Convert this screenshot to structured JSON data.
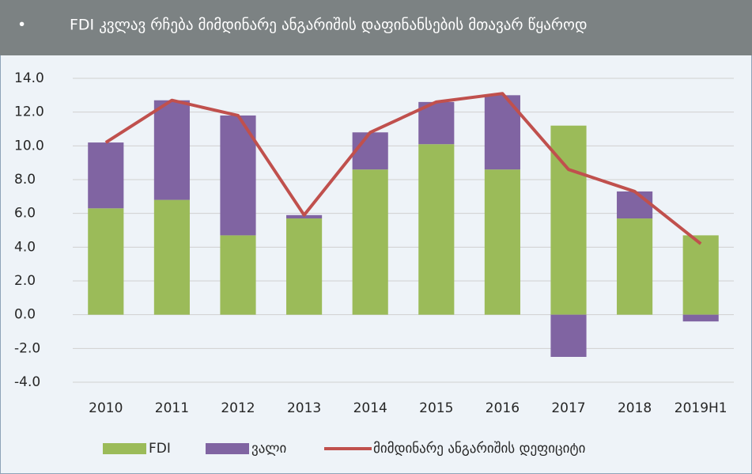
{
  "chart_data": {
    "type": "bar",
    "title": "FDI  კვლავ რჩება მიმდინარე ანგარიშის დაფინანსების მთავარ წყაროდ",
    "categories": [
      "2010",
      "2011",
      "2012",
      "2013",
      "2014",
      "2015",
      "2016",
      "2017",
      "2018",
      "2019H1"
    ],
    "stacked": true,
    "series": [
      {
        "name": "FDI",
        "type": "bar",
        "color": "#9bbb59",
        "values": [
          6.3,
          6.8,
          4.7,
          5.7,
          8.6,
          10.1,
          8.6,
          11.2,
          5.7,
          4.7
        ]
      },
      {
        "name": "ვალი",
        "type": "bar",
        "color": "#8064a2",
        "values": [
          3.9,
          5.9,
          7.1,
          0.2,
          2.2,
          2.5,
          4.4,
          -2.5,
          1.6,
          -0.4
        ]
      },
      {
        "name": "მიმდინარე ანგარიშის დეფიციტი",
        "type": "line",
        "color": "#c0504d",
        "values": [
          10.2,
          12.7,
          11.8,
          5.9,
          10.8,
          12.6,
          13.1,
          8.6,
          7.3,
          4.2
        ]
      }
    ],
    "ylim": [
      -4,
      14
    ],
    "yticks": [
      {
        "value": -4,
        "label": "-4.0"
      },
      {
        "value": -2,
        "label": "-2.0"
      },
      {
        "value": 0,
        "label": "0.0"
      },
      {
        "value": 2,
        "label": "2.0"
      },
      {
        "value": 4,
        "label": "4.0"
      },
      {
        "value": 6,
        "label": "6.0"
      },
      {
        "value": 8,
        "label": "8.0"
      },
      {
        "value": 10,
        "label": "10.0"
      },
      {
        "value": 12,
        "label": "12.0"
      },
      {
        "value": 14,
        "label": "14.0"
      }
    ],
    "grid": true,
    "legend": "bottom"
  }
}
